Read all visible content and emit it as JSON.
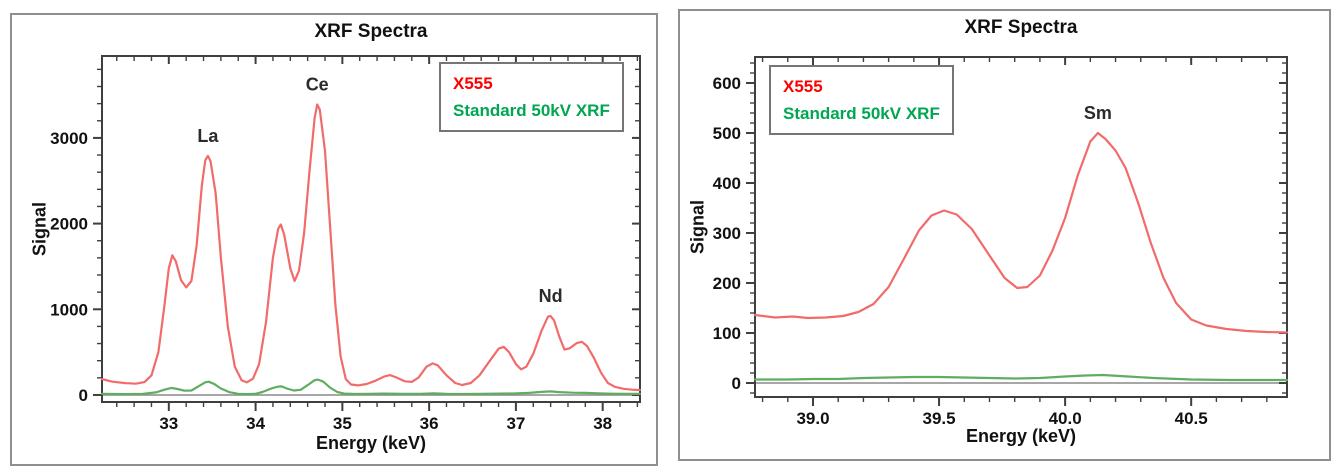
{
  "chart_data": [
    {
      "type": "line",
      "title": "XRF Spectra",
      "xlabel": "Energy (keV)",
      "ylabel": "Signal",
      "xlim": [
        32.23,
        38.43
      ],
      "ylim": [
        -82,
        3956
      ],
      "x_major_ticks": [
        33,
        34,
        35,
        36,
        37,
        38
      ],
      "x_tick_labels": [
        "33",
        "34",
        "35",
        "36",
        "37",
        "38"
      ],
      "x_minor_step": 0.2,
      "y_major_ticks": [
        0,
        1000,
        2000,
        3000
      ],
      "y_tick_labels": [
        "0",
        "1000",
        "2000",
        "3000"
      ],
      "y_minor_step": 200,
      "legend": [
        {
          "label": "X555",
          "color": "#fe0000"
        },
        {
          "label": "Standard 50kV XRF",
          "color": "#00a651"
        }
      ],
      "annotations": [
        {
          "text": "La",
          "x": 33.45,
          "y": 2790
        },
        {
          "text": "Ce",
          "x": 34.71,
          "y": 3390
        },
        {
          "text": "Nd",
          "x": 37.4,
          "y": 920
        }
      ],
      "series": [
        {
          "name": "X555",
          "color": "#f26b6b",
          "points": [
            [
              32.23,
              185
            ],
            [
              32.35,
              155
            ],
            [
              32.5,
              138
            ],
            [
              32.62,
              132
            ],
            [
              32.72,
              150
            ],
            [
              32.8,
              230
            ],
            [
              32.88,
              500
            ],
            [
              32.95,
              1050
            ],
            [
              33.0,
              1480
            ],
            [
              33.04,
              1630
            ],
            [
              33.08,
              1560
            ],
            [
              33.14,
              1340
            ],
            [
              33.2,
              1255
            ],
            [
              33.26,
              1330
            ],
            [
              33.32,
              1740
            ],
            [
              33.38,
              2440
            ],
            [
              33.42,
              2740
            ],
            [
              33.45,
              2790
            ],
            [
              33.48,
              2730
            ],
            [
              33.54,
              2350
            ],
            [
              33.6,
              1600
            ],
            [
              33.68,
              800
            ],
            [
              33.76,
              330
            ],
            [
              33.84,
              170
            ],
            [
              33.9,
              148
            ],
            [
              33.97,
              190
            ],
            [
              34.04,
              360
            ],
            [
              34.12,
              850
            ],
            [
              34.2,
              1600
            ],
            [
              34.26,
              1940
            ],
            [
              34.29,
              1990
            ],
            [
              34.33,
              1870
            ],
            [
              34.4,
              1480
            ],
            [
              34.45,
              1330
            ],
            [
              34.5,
              1450
            ],
            [
              34.56,
              1900
            ],
            [
              34.62,
              2600
            ],
            [
              34.68,
              3230
            ],
            [
              34.71,
              3390
            ],
            [
              34.74,
              3330
            ],
            [
              34.8,
              2850
            ],
            [
              34.86,
              1950
            ],
            [
              34.92,
              1050
            ],
            [
              34.98,
              450
            ],
            [
              35.04,
              185
            ],
            [
              35.1,
              122
            ],
            [
              35.18,
              112
            ],
            [
              35.28,
              128
            ],
            [
              35.38,
              165
            ],
            [
              35.48,
              215
            ],
            [
              35.55,
              232
            ],
            [
              35.62,
              205
            ],
            [
              35.72,
              160
            ],
            [
              35.8,
              152
            ],
            [
              35.88,
              205
            ],
            [
              35.97,
              330
            ],
            [
              36.04,
              368
            ],
            [
              36.1,
              345
            ],
            [
              36.2,
              230
            ],
            [
              36.3,
              140
            ],
            [
              36.38,
              116
            ],
            [
              36.48,
              140
            ],
            [
              36.58,
              230
            ],
            [
              36.7,
              400
            ],
            [
              36.8,
              540
            ],
            [
              36.86,
              562
            ],
            [
              36.92,
              500
            ],
            [
              37.0,
              360
            ],
            [
              37.06,
              298
            ],
            [
              37.12,
              330
            ],
            [
              37.2,
              480
            ],
            [
              37.3,
              760
            ],
            [
              37.37,
              915
            ],
            [
              37.4,
              920
            ],
            [
              37.44,
              870
            ],
            [
              37.5,
              680
            ],
            [
              37.56,
              530
            ],
            [
              37.62,
              545
            ],
            [
              37.7,
              605
            ],
            [
              37.76,
              620
            ],
            [
              37.82,
              570
            ],
            [
              37.9,
              430
            ],
            [
              37.98,
              260
            ],
            [
              38.06,
              140
            ],
            [
              38.14,
              95
            ],
            [
              38.24,
              72
            ],
            [
              38.34,
              62
            ],
            [
              38.43,
              58
            ]
          ]
        },
        {
          "name": "Standard 50kV XRF",
          "color": "#5fae5f",
          "points": [
            [
              32.23,
              14
            ],
            [
              32.5,
              10
            ],
            [
              32.7,
              14
            ],
            [
              32.85,
              30
            ],
            [
              32.95,
              62
            ],
            [
              33.03,
              83
            ],
            [
              33.1,
              70
            ],
            [
              33.18,
              50
            ],
            [
              33.26,
              52
            ],
            [
              33.34,
              100
            ],
            [
              33.42,
              148
            ],
            [
              33.46,
              155
            ],
            [
              33.52,
              130
            ],
            [
              33.6,
              75
            ],
            [
              33.7,
              32
            ],
            [
              33.8,
              14
            ],
            [
              33.9,
              10
            ],
            [
              34.0,
              14
            ],
            [
              34.08,
              35
            ],
            [
              34.18,
              75
            ],
            [
              34.26,
              98
            ],
            [
              34.3,
              100
            ],
            [
              34.36,
              75
            ],
            [
              34.44,
              52
            ],
            [
              34.52,
              60
            ],
            [
              34.6,
              115
            ],
            [
              34.68,
              172
            ],
            [
              34.72,
              180
            ],
            [
              34.78,
              155
            ],
            [
              34.86,
              85
            ],
            [
              34.94,
              35
            ],
            [
              35.02,
              16
            ],
            [
              35.15,
              11
            ],
            [
              35.3,
              14
            ],
            [
              35.5,
              16
            ],
            [
              35.7,
              12
            ],
            [
              35.9,
              14
            ],
            [
              36.05,
              18
            ],
            [
              36.2,
              13
            ],
            [
              36.4,
              11
            ],
            [
              36.6,
              14
            ],
            [
              36.8,
              16
            ],
            [
              37.0,
              18
            ],
            [
              37.15,
              24
            ],
            [
              37.3,
              36
            ],
            [
              37.4,
              42
            ],
            [
              37.5,
              34
            ],
            [
              37.65,
              26
            ],
            [
              37.8,
              24
            ],
            [
              37.95,
              18
            ],
            [
              38.1,
              15
            ],
            [
              38.25,
              13
            ],
            [
              38.43,
              12
            ]
          ]
        }
      ]
    },
    {
      "type": "line",
      "title": "XRF Spectra",
      "xlabel": "Energy (keV)",
      "ylabel": "Signal",
      "xlim": [
        38.77,
        40.88
      ],
      "ylim": [
        -28,
        652
      ],
      "x_major_ticks": [
        39.0,
        39.5,
        40.0,
        40.5
      ],
      "x_tick_labels": [
        "39.0",
        "39.5",
        "40.0",
        "40.5"
      ],
      "x_minor_step": 0.1,
      "y_major_ticks": [
        0,
        100,
        200,
        300,
        400,
        500,
        600
      ],
      "y_tick_labels": [
        "0",
        "100",
        "200",
        "300",
        "400",
        "500",
        "600"
      ],
      "y_minor_step": 20,
      "legend": [
        {
          "label": "X555",
          "color": "#fe0000"
        },
        {
          "label": "Standard 50kV XRF",
          "color": "#00a651"
        }
      ],
      "annotations": [
        {
          "text": "Sm",
          "x": 40.13,
          "y": 500
        }
      ],
      "series": [
        {
          "name": "X555",
          "color": "#f26b6b",
          "points": [
            [
              38.77,
              136
            ],
            [
              38.85,
              131
            ],
            [
              38.92,
              133
            ],
            [
              38.98,
              130
            ],
            [
              39.05,
              131
            ],
            [
              39.12,
              134
            ],
            [
              39.18,
              142
            ],
            [
              39.24,
              158
            ],
            [
              39.3,
              192
            ],
            [
              39.36,
              248
            ],
            [
              39.42,
              305
            ],
            [
              39.47,
              335
            ],
            [
              39.52,
              345
            ],
            [
              39.57,
              337
            ],
            [
              39.63,
              308
            ],
            [
              39.7,
              255
            ],
            [
              39.76,
              210
            ],
            [
              39.81,
              190
            ],
            [
              39.85,
              192
            ],
            [
              39.9,
              215
            ],
            [
              39.95,
              265
            ],
            [
              40.0,
              330
            ],
            [
              40.05,
              415
            ],
            [
              40.1,
              483
            ],
            [
              40.13,
              500
            ],
            [
              40.16,
              488
            ],
            [
              40.2,
              465
            ],
            [
              40.24,
              430
            ],
            [
              40.29,
              360
            ],
            [
              40.34,
              280
            ],
            [
              40.39,
              210
            ],
            [
              40.44,
              160
            ],
            [
              40.5,
              127
            ],
            [
              40.56,
              115
            ],
            [
              40.64,
              108
            ],
            [
              40.72,
              104
            ],
            [
              40.8,
              102
            ],
            [
              40.88,
              101
            ]
          ]
        },
        {
          "name": "Standard 50kV XRF",
          "color": "#5fae5f",
          "points": [
            [
              38.77,
              7
            ],
            [
              38.9,
              7
            ],
            [
              39.0,
              8
            ],
            [
              39.1,
              8
            ],
            [
              39.2,
              10
            ],
            [
              39.3,
              11
            ],
            [
              39.4,
              12
            ],
            [
              39.5,
              12
            ],
            [
              39.6,
              11
            ],
            [
              39.7,
              10
            ],
            [
              39.8,
              9
            ],
            [
              39.9,
              10
            ],
            [
              40.0,
              13
            ],
            [
              40.08,
              15
            ],
            [
              40.15,
              16
            ],
            [
              40.25,
              13
            ],
            [
              40.35,
              10
            ],
            [
              40.5,
              7
            ],
            [
              40.65,
              6
            ],
            [
              40.8,
              6
            ],
            [
              40.88,
              6
            ]
          ]
        }
      ]
    }
  ]
}
